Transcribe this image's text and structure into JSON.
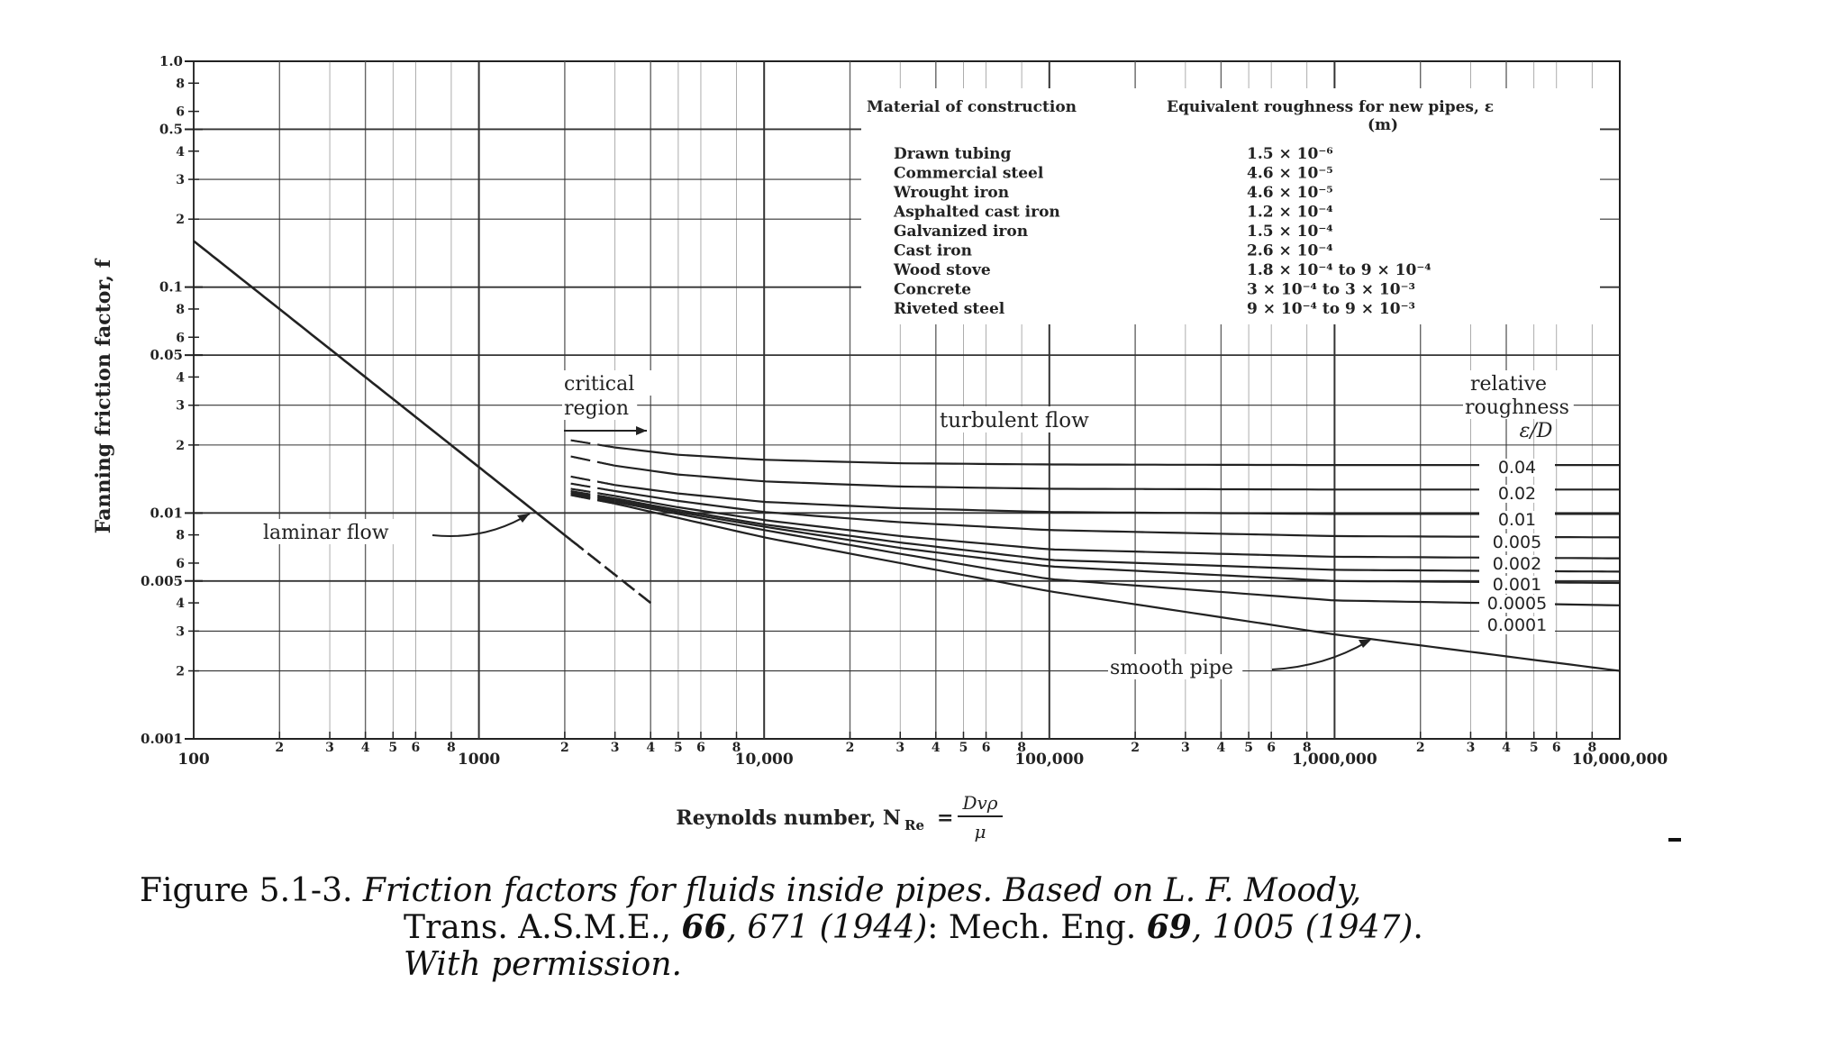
{
  "chart_data": {
    "type": "line",
    "xscale": "log",
    "yscale": "log",
    "xlim": [
      100,
      10000000
    ],
    "ylim": [
      0.001,
      1.0
    ],
    "xlabel": "Reynolds number, N",
    "xlabel_sub": "Re",
    "xlabel_eq": "=",
    "xlabel_frac_num": "Dvρ",
    "xlabel_frac_den": "μ",
    "ylabel": "Fanning friction factor, f",
    "x_major_ticks": [
      {
        "v": 100,
        "label": "100"
      },
      {
        "v": 1000,
        "label": "1000"
      },
      {
        "v": 10000,
        "label": "10,000"
      },
      {
        "v": 100000,
        "label": "100,000"
      },
      {
        "v": 1000000,
        "label": "1,000,000"
      },
      {
        "v": 10000000,
        "label": "10,000,000"
      }
    ],
    "x_minor_labels": [
      "2",
      "3",
      "4",
      "5",
      "6",
      "8"
    ],
    "y_major_ticks": [
      {
        "v": 0.001,
        "label": "0.001"
      },
      {
        "v": 0.005,
        "label": "0.005"
      },
      {
        "v": 0.01,
        "label": "0.01"
      },
      {
        "v": 0.05,
        "label": "0.05"
      },
      {
        "v": 0.1,
        "label": "0.1"
      },
      {
        "v": 0.5,
        "label": "0.5"
      },
      {
        "v": 1.0,
        "label": "1.0"
      }
    ],
    "y_minor_ticks": [
      {
        "v": 0.002,
        "label": "2"
      },
      {
        "v": 0.003,
        "label": "3"
      },
      {
        "v": 0.004,
        "label": "4"
      },
      {
        "v": 0.006,
        "label": "6"
      },
      {
        "v": 0.008,
        "label": "8"
      },
      {
        "v": 0.02,
        "label": "2"
      },
      {
        "v": 0.03,
        "label": "3"
      },
      {
        "v": 0.04,
        "label": "4"
      },
      {
        "v": 0.06,
        "label": "6"
      },
      {
        "v": 0.08,
        "label": "8"
      },
      {
        "v": 0.2,
        "label": "2"
      },
      {
        "v": 0.3,
        "label": "3"
      },
      {
        "v": 0.4,
        "label": "4"
      },
      {
        "v": 0.6,
        "label": "6"
      },
      {
        "v": 0.8,
        "label": "8"
      }
    ],
    "grid": true,
    "series": [
      {
        "label": "0.04",
        "x": [
          2100,
          3000,
          5000,
          10000,
          30000,
          100000,
          1000000,
          10000000
        ],
        "y": [
          0.021,
          0.0195,
          0.0181,
          0.0172,
          0.0166,
          0.0164,
          0.0163,
          0.0163
        ],
        "dashed_below": 3000
      },
      {
        "label": "0.02",
        "x": [
          2100,
          3000,
          5000,
          10000,
          30000,
          100000,
          1000000,
          10000000
        ],
        "y": [
          0.0178,
          0.0162,
          0.0148,
          0.0138,
          0.0131,
          0.0128,
          0.0127,
          0.0127
        ],
        "dashed_below": 3000
      },
      {
        "label": "0.01",
        "x": [
          2100,
          3000,
          5000,
          10000,
          30000,
          100000,
          1000000,
          10000000
        ],
        "y": [
          0.0145,
          0.0133,
          0.0122,
          0.0112,
          0.0105,
          0.0101,
          0.0099,
          0.0099
        ],
        "dashed_below": 3000
      },
      {
        "label": "0.005",
        "x": [
          2100,
          3000,
          5000,
          10000,
          30000,
          100000,
          1000000,
          10000000
        ],
        "y": [
          0.0135,
          0.0125,
          0.0113,
          0.0101,
          0.0091,
          0.0084,
          0.0079,
          0.0078
        ],
        "dashed_below": 3000
      },
      {
        "label": "0.002",
        "x": [
          2100,
          3000,
          5000,
          10000,
          30000,
          100000,
          1000000,
          10000000
        ],
        "y": [
          0.0128,
          0.0119,
          0.0106,
          0.0093,
          0.0079,
          0.0069,
          0.0064,
          0.0063
        ],
        "dashed_below": 3000
      },
      {
        "label": "0.001",
        "x": [
          2100,
          3000,
          5000,
          10000,
          30000,
          100000,
          1000000,
          10000000
        ],
        "y": [
          0.0125,
          0.0116,
          0.0103,
          0.0089,
          0.0074,
          0.0062,
          0.0056,
          0.0055
        ],
        "dashed_below": 3000
      },
      {
        "label": "0.0005",
        "x": [
          2100,
          3000,
          5000,
          10000,
          30000,
          100000,
          1000000,
          10000000
        ],
        "y": [
          0.0123,
          0.0114,
          0.0101,
          0.0087,
          0.007,
          0.0058,
          0.005,
          0.0049
        ],
        "dashed_below": 3000
      },
      {
        "label": "0.0001",
        "x": [
          2100,
          3000,
          5000,
          10000,
          30000,
          100000,
          1000000,
          10000000
        ],
        "y": [
          0.0121,
          0.0112,
          0.0099,
          0.0084,
          0.0066,
          0.0051,
          0.0041,
          0.0039
        ],
        "dashed_below": 3000
      },
      {
        "label": "smooth pipe",
        "x": [
          2100,
          3000,
          10000,
          100000,
          1000000,
          10000000
        ],
        "y": [
          0.012,
          0.011,
          0.0078,
          0.0045,
          0.0029,
          0.002
        ],
        "dashed_below": 3000
      },
      {
        "label": "laminar flow",
        "x": [
          100,
          2100,
          4000
        ],
        "y": [
          0.16,
          0.0076,
          0.004
        ],
        "dashed_above": 2100
      }
    ],
    "annotations": {
      "laminar": "laminar flow",
      "critical_line1": "critical",
      "critical_line2": "region",
      "turbulent": "turbulent flow",
      "smooth": "smooth pipe",
      "rr_line1": "relative",
      "rr_line2": "roughness",
      "rr_line3": "ε/D"
    },
    "roughness_table": {
      "header_material": "Material of construction",
      "header_roughness_line1": "Equivalent roughness for new pipes, ε",
      "header_roughness_line2": "(m)",
      "rows": [
        {
          "material": "Drawn tubing",
          "roughness": "1.5 × 10⁻⁶"
        },
        {
          "material": "Commercial steel",
          "roughness": "4.6 × 10⁻⁵"
        },
        {
          "material": "Wrought iron",
          "roughness": "4.6 × 10⁻⁵"
        },
        {
          "material": "Asphalted cast iron",
          "roughness": "1.2 × 10⁻⁴"
        },
        {
          "material": "Galvanized iron",
          "roughness": "1.5 × 10⁻⁴"
        },
        {
          "material": "Cast iron",
          "roughness": "2.6 × 10⁻⁴"
        },
        {
          "material": "Wood stove",
          "roughness": "1.8 × 10⁻⁴ to 9 × 10⁻⁴"
        },
        {
          "material": "Concrete",
          "roughness": "3   × 10⁻⁴ to 3 × 10⁻³"
        },
        {
          "material": "Riveted steel",
          "roughness": "9   × 10⁻⁴ to 9 × 10⁻³"
        }
      ]
    }
  },
  "caption": {
    "prefix": "Figure 5.1-3. ",
    "part1": "Friction factors for fluids inside pipes. Based on L. F. Moody,",
    "part2": "Trans. A.S.M.E., ",
    "bold1": "66",
    "part3": ", 671 (1944)",
    "part4": ": Mech. Eng. ",
    "bold2": "69",
    "part5": ", 1005 (1947)",
    "part6": ".",
    "part7": "With permission."
  }
}
